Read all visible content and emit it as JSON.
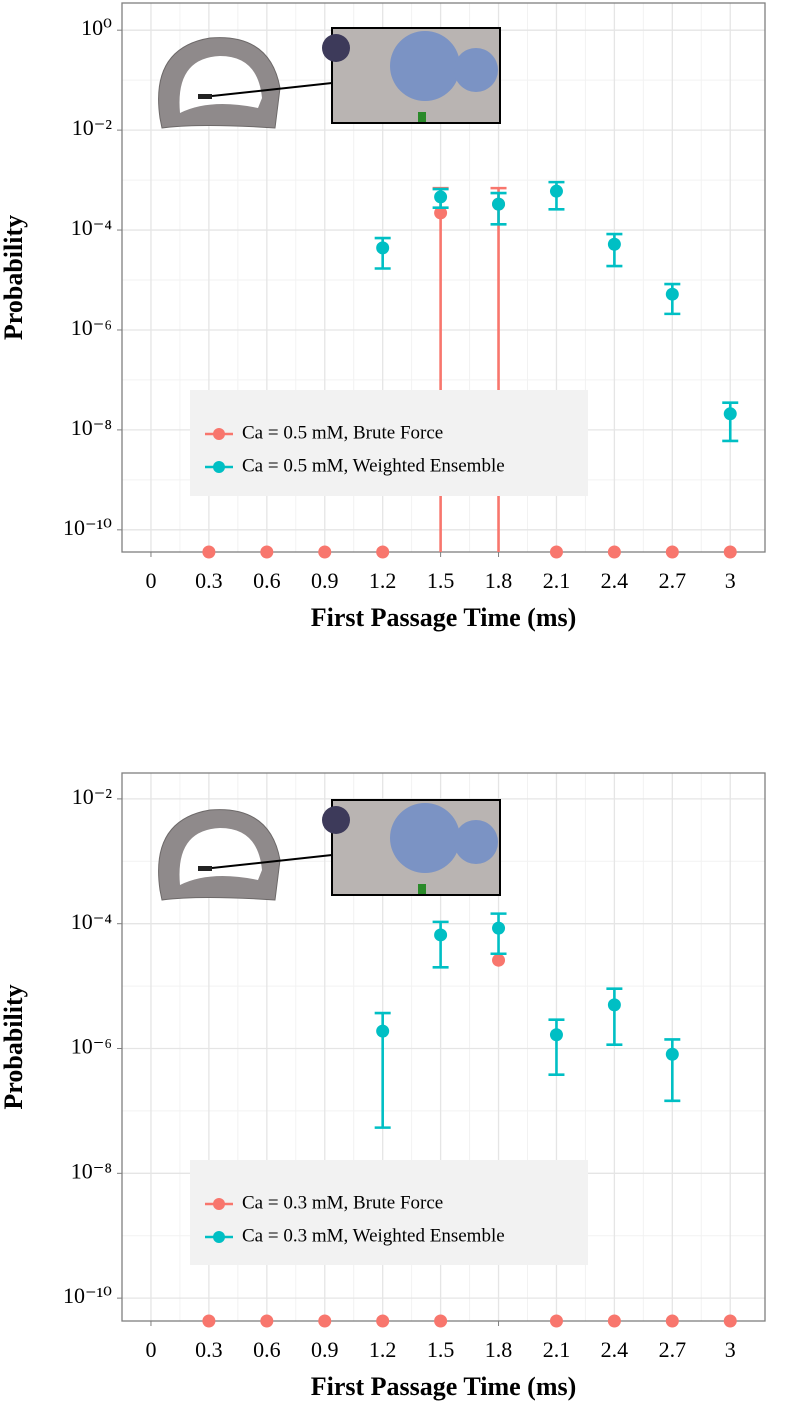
{
  "chart_data": [
    {
      "type": "scatter",
      "log_y": true,
      "grid": true,
      "minor_grid": true,
      "x_label": "First Passage Time (ms)",
      "y_label": "Probability",
      "xlim": [
        -0.15,
        3.18
      ],
      "xticks": [
        0,
        0.3,
        0.6,
        0.9,
        1.2,
        1.5,
        1.8,
        2.1,
        2.4,
        2.7,
        3
      ],
      "ylim": [
        3.5,
        3.6e-11
      ],
      "yticks": [
        {
          "value": 1,
          "label": "10⁰"
        },
        {
          "value": 0.01,
          "label": "10⁻²"
        },
        {
          "value": 0.0001,
          "label": "10⁻⁴"
        },
        {
          "value": 1e-06,
          "label": "10⁻⁶"
        },
        {
          "value": 1e-08,
          "label": "10⁻⁸"
        },
        {
          "value": 1e-10,
          "label": "10⁻¹⁰"
        }
      ],
      "series": [
        {
          "name": "Ca = 0.5 mM, Brute Force",
          "color": "#F8766D",
          "x": [
            0.3,
            0.6,
            0.9,
            1.2,
            1.5,
            1.8,
            2.1,
            2.4,
            2.7,
            3
          ],
          "values": [
            0,
            0,
            0,
            0,
            0.00022,
            0.00033,
            0,
            0,
            0,
            0
          ],
          "lower": [
            0,
            0,
            0,
            0,
            0,
            0,
            0,
            0,
            0,
            0
          ],
          "upper": [
            0,
            0,
            0,
            0,
            0.00069,
            0.00069,
            0,
            0,
            0,
            0
          ]
        },
        {
          "name": "Ca = 0.5 mM, Weighted Ensemble",
          "color": "#00BFC4",
          "x": [
            1.2,
            1.5,
            1.8,
            2.1,
            2.4,
            2.7,
            3
          ],
          "values": [
            4.4e-05,
            0.00046,
            0.00033,
            0.0006,
            5.2e-05,
            5.2e-06,
            2.1e-08
          ],
          "lower": [
            1.7e-05,
            0.00028,
            0.00013,
            0.00026,
            1.9e-05,
            2.1e-06,
            6e-09
          ],
          "upper": [
            6.9e-05,
            0.00066,
            0.00055,
            0.00091,
            8.3e-05,
            8.3e-06,
            3.5e-08
          ]
        }
      ]
    },
    {
      "type": "scatter",
      "log_y": true,
      "grid": true,
      "minor_grid": true,
      "x_label": "First Passage Time (ms)",
      "y_label": "Probability",
      "xlim": [
        -0.15,
        3.18
      ],
      "xticks": [
        0,
        0.3,
        0.6,
        0.9,
        1.2,
        1.5,
        1.8,
        2.1,
        2.4,
        2.7,
        3
      ],
      "ylim": [
        0.026,
        4.3e-11
      ],
      "yticks": [
        {
          "value": 0.01,
          "label": "10⁻²"
        },
        {
          "value": 0.0001,
          "label": "10⁻⁴"
        },
        {
          "value": 1e-06,
          "label": "10⁻⁶"
        },
        {
          "value": 1e-08,
          "label": "10⁻⁸"
        },
        {
          "value": 1e-10,
          "label": "10⁻¹⁰"
        }
      ],
      "series": [
        {
          "name": "Ca = 0.3 mM, Brute Force",
          "color": "#F8766D",
          "x": [
            0.3,
            0.6,
            0.9,
            1.2,
            1.5,
            1.8,
            2.1,
            2.4,
            2.7,
            3
          ],
          "values": [
            0,
            0,
            0,
            0,
            0,
            2.6e-05,
            0,
            0,
            0,
            0
          ],
          "lower": [
            0,
            0,
            0,
            0,
            0,
            2.6e-05,
            0,
            0,
            0,
            0
          ],
          "upper": [
            0,
            0,
            0,
            0,
            0,
            2.6e-05,
            0,
            0,
            0,
            0
          ]
        },
        {
          "name": "Ca = 0.3 mM, Weighted Ensemble",
          "color": "#00BFC4",
          "x": [
            1.2,
            1.5,
            1.8,
            2.1,
            2.4,
            2.7
          ],
          "values": [
            1.9e-06,
            6.6e-05,
            8.5e-05,
            1.66e-06,
            5e-06,
            8.1e-07
          ],
          "lower": [
            5.4e-08,
            2e-05,
            3.3e-05,
            3.8e-07,
            1.15e-06,
            1.45e-07
          ],
          "upper": [
            3.7e-06,
            0.000107,
            0.000145,
            2.9e-06,
            9.1e-06,
            1.4e-06
          ]
        }
      ]
    }
  ]
}
